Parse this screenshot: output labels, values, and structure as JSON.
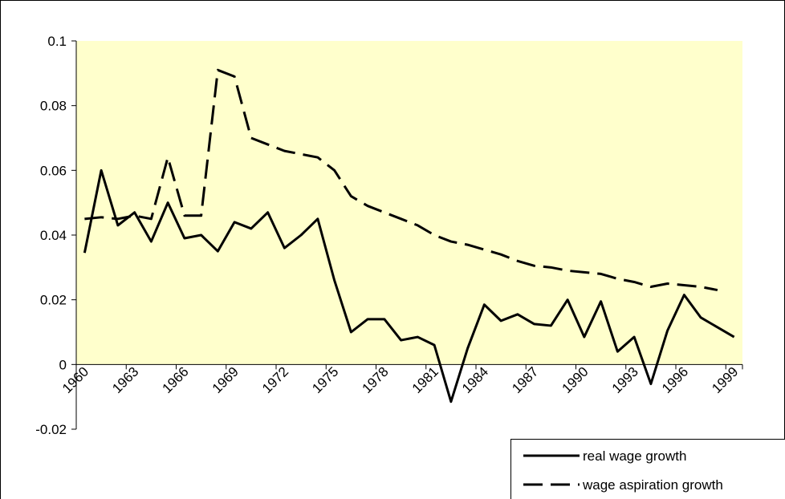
{
  "chart_data": {
    "type": "line",
    "categories": [
      "1960",
      null,
      null,
      "1963",
      null,
      null,
      "1966",
      null,
      null,
      "1969",
      null,
      null,
      "1972",
      null,
      null,
      "1975",
      null,
      null,
      "1978",
      null,
      null,
      "1981",
      null,
      null,
      "1984",
      null,
      null,
      "1987",
      null,
      null,
      "1990",
      null,
      null,
      "1993",
      null,
      null,
      "1996",
      null,
      null,
      "1999"
    ],
    "series": [
      {
        "name": "real wage growth",
        "color": "#000000",
        "dash": "solid",
        "values": [
          0.0345,
          0.06,
          0.043,
          0.047,
          0.038,
          0.05,
          0.039,
          0.04,
          0.035,
          0.044,
          0.042,
          0.047,
          0.036,
          0.04,
          0.045,
          0.026,
          0.01,
          0.014,
          0.014,
          0.0075,
          0.0085,
          0.006,
          -0.0115,
          0.005,
          0.0185,
          0.0135,
          0.0155,
          0.0125,
          0.012,
          0.02,
          0.0085,
          0.0195,
          0.004,
          0.0085,
          -0.006,
          0.0105,
          0.0215,
          0.0145,
          0.0115,
          0.0085
        ]
      },
      {
        "name": "wage aspiration growth",
        "color": "#000000",
        "dash": "dashed",
        "values": [
          0.045,
          0.0455,
          0.045,
          0.046,
          0.045,
          0.064,
          0.046,
          0.046,
          0.091,
          0.089,
          0.07,
          0.068,
          0.066,
          0.065,
          0.064,
          0.06,
          0.052,
          0.049,
          0.047,
          0.045,
          0.043,
          0.04,
          0.038,
          0.037,
          0.0355,
          0.034,
          0.032,
          0.0305,
          0.03,
          0.029,
          0.0285,
          0.028,
          0.0265,
          0.0255,
          0.024,
          0.025,
          0.0245,
          0.024,
          0.023,
          null
        ]
      }
    ],
    "ylim": [
      -0.02,
      0.1
    ],
    "yticks": [
      -0.02,
      0,
      0.02,
      0.04,
      0.06,
      0.08,
      0.1
    ],
    "background": "#ffffcc",
    "legend": "bottom-right"
  }
}
